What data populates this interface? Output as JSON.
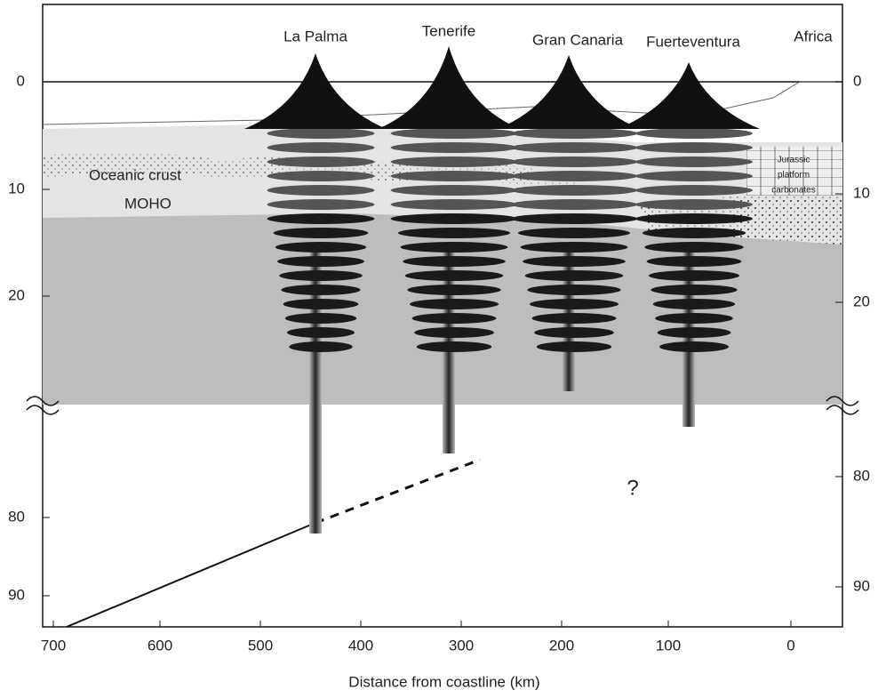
{
  "islands": [
    "La Palma",
    "Tenerife",
    "Gran Canaria",
    "Fuerteventura",
    "Africa"
  ],
  "labels": {
    "oceanic_crust": "Oceanic crust",
    "moho": "MOHO",
    "jurassic": [
      "Jurassic",
      "platform",
      "carbonates"
    ],
    "unknown": "?"
  },
  "x_axis": {
    "title": "Distance from coastline (km)",
    "ticks": [
      700,
      600,
      500,
      400,
      300,
      200,
      100,
      0
    ]
  },
  "left_axis": {
    "ticks": [
      0,
      10,
      20,
      80,
      90
    ]
  },
  "right_axis": {
    "ticks": [
      0,
      10,
      20,
      80,
      90
    ]
  }
}
